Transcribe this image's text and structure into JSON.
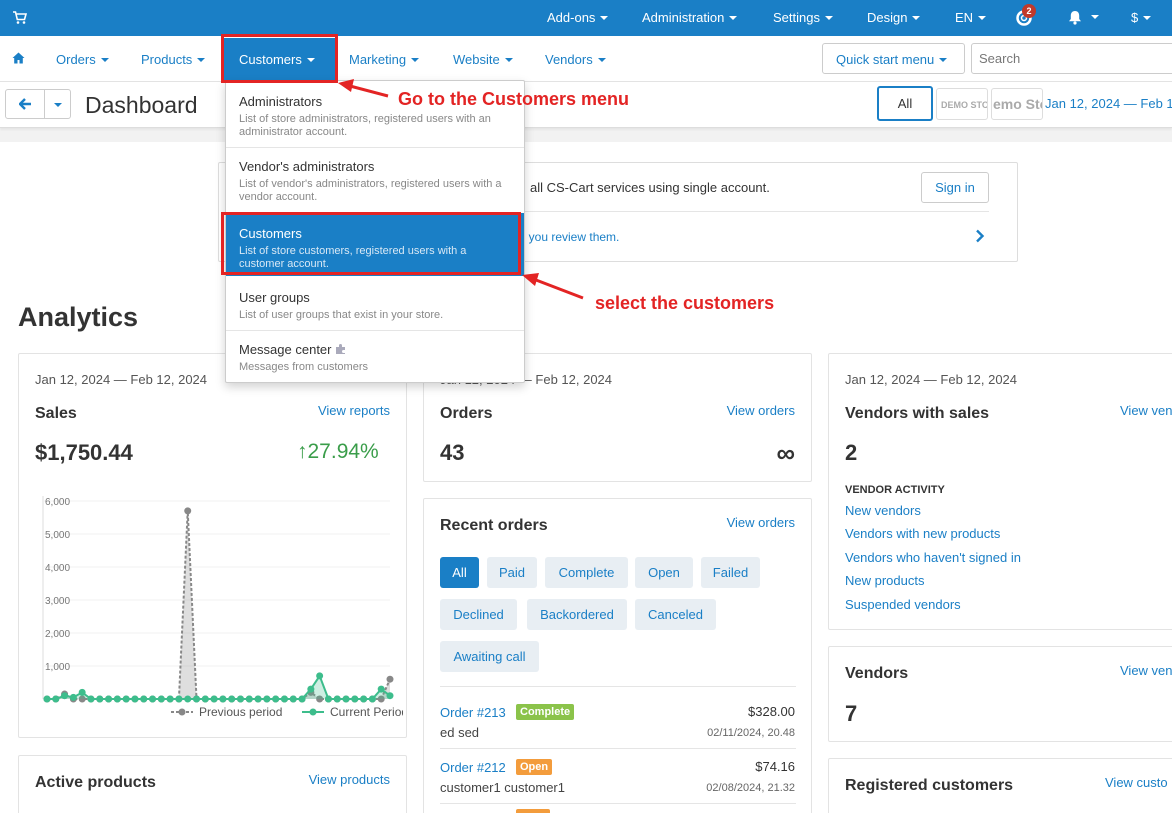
{
  "topbar": {
    "addons": "Add-ons",
    "administration": "Administration",
    "settings": "Settings",
    "design": "Design",
    "language": "EN",
    "notifications_count": "2",
    "currency": "$"
  },
  "nav": {
    "orders": "Orders",
    "products": "Products",
    "customers": "Customers",
    "marketing": "Marketing",
    "website": "Website",
    "vendors": "Vendors",
    "quick_start": "Quick start menu",
    "search_placeholder": "Search"
  },
  "titlebar": {
    "title": "Dashboard",
    "all": "All",
    "demo1": "DEMO STO",
    "demo2": "emo Sto",
    "date_range": "Jan 12, 2024 — Feb 1"
  },
  "notice": {
    "text1": "all CS-Cart services using single account.",
    "signin": "Sign in",
    "text2": "il you review them."
  },
  "analytics_title": "Analytics",
  "sales": {
    "date": "Jan 12, 2024 — Feb 12, 2024",
    "title": "Sales",
    "link": "View reports",
    "amount": "$1,750.44",
    "growth": "27.94%",
    "legend_prev": "Previous period",
    "legend_curr": "Current Period"
  },
  "chart_data": {
    "type": "area",
    "y_ticks": [
      "6,000",
      "5,000",
      "4,000",
      "3,000",
      "2,000",
      "1,000"
    ],
    "ylim": [
      0,
      6000
    ],
    "series": [
      {
        "name": "Previous period",
        "values": [
          0,
          0,
          150,
          0,
          0,
          0,
          0,
          0,
          0,
          0,
          0,
          0,
          0,
          0,
          0,
          0,
          5700,
          0,
          0,
          0,
          0,
          0,
          0,
          0,
          0,
          0,
          0,
          0,
          0,
          0,
          200,
          0,
          0,
          0,
          0,
          0,
          0,
          0,
          0,
          600
        ]
      },
      {
        "name": "Current Period",
        "values": [
          0,
          0,
          100,
          50,
          200,
          0,
          0,
          0,
          0,
          0,
          0,
          0,
          0,
          0,
          0,
          0,
          0,
          0,
          0,
          0,
          0,
          0,
          0,
          0,
          0,
          0,
          0,
          0,
          0,
          0,
          300,
          700,
          0,
          0,
          0,
          0,
          0,
          0,
          300,
          100
        ]
      }
    ]
  },
  "orders_card": {
    "date": "Jan 12, 2024 — Feb 12, 2024",
    "title": "Orders",
    "link": "View orders",
    "count": "43",
    "growth": "∞"
  },
  "recent_orders": {
    "title": "Recent orders",
    "link": "View orders",
    "statuses": [
      "All",
      "Paid",
      "Complete",
      "Open",
      "Failed",
      "Declined",
      "Backordered",
      "Canceled",
      "Awaiting call"
    ],
    "orders": [
      {
        "id": "Order #213",
        "status": "Complete",
        "status_color": "#8bc34a",
        "name": "ed sed",
        "price": "$328.00",
        "date": "02/11/2024, 20.48"
      },
      {
        "id": "Order #212",
        "status": "Open",
        "status_color": "#f39c3c",
        "name": "customer1 customer1",
        "price": "$74.16",
        "date": "02/08/2024, 21.32"
      }
    ]
  },
  "vendors_sales": {
    "date": "Jan 12, 2024 — Feb 12, 2024",
    "title": "Vendors with sales",
    "link": "View ven",
    "count": "2",
    "activity_label": "VENDOR ACTIVITY",
    "links": [
      "New vendors",
      "Vendors with new products",
      "Vendors who haven't signed in",
      "New products",
      "Suspended vendors"
    ]
  },
  "vendors_card": {
    "title": "Vendors",
    "link": "View ven",
    "count": "7"
  },
  "registered_customers": {
    "title": "Registered customers",
    "link": "View custo"
  },
  "active_products": {
    "title": "Active products",
    "link": "View products"
  },
  "dropdown": {
    "items": [
      {
        "title": "Administrators",
        "desc": "List of store administrators, registered users with an administrator account."
      },
      {
        "title": "Vendor's administrators",
        "desc": "List of vendor's administrators, registered users with a vendor account."
      },
      {
        "title": "Customers",
        "desc": "List of store customers, registered users with a customer account."
      },
      {
        "title": "User groups",
        "desc": "List of user groups that exist in your store."
      },
      {
        "title": "Message center",
        "desc": "Messages from customers"
      }
    ]
  },
  "annotations": {
    "menu": "Go to the Customers menu",
    "select": "select the customers"
  },
  "colors": {
    "primary": "#1a7fc6",
    "annotation": "#e32424",
    "growth": "#3a9d4a"
  }
}
